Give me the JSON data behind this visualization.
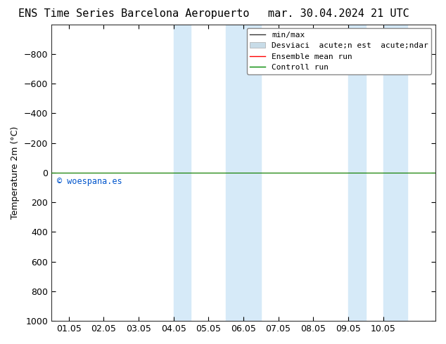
{
  "title_left": "ENS Time Series Barcelona Aeropuerto",
  "title_right": "mar. 30.04.2024 21 UTC",
  "ylabel": "Temperature 2m (°C)",
  "ylim_bottom": 1000,
  "ylim_top": -1000,
  "yticks": [
    -800,
    -600,
    -400,
    -200,
    0,
    200,
    400,
    600,
    800,
    1000
  ],
  "xlim_left": -0.5,
  "xlim_right": 10.5,
  "xtick_labels": [
    "01.05",
    "02.05",
    "03.05",
    "04.05",
    "05.05",
    "06.05",
    "07.05",
    "08.05",
    "09.05",
    "10.05"
  ],
  "xtick_positions": [
    0,
    1,
    2,
    3,
    4,
    5,
    6,
    7,
    8,
    9
  ],
  "shade_regions": [
    [
      3.0,
      3.5
    ],
    [
      4.5,
      5.5
    ],
    [
      8.0,
      8.5
    ],
    [
      9.0,
      9.7
    ]
  ],
  "shade_color": "#d6eaf8",
  "control_run_color": "#008800",
  "ensemble_mean_color": "#ff0000",
  "watermark": "© woespana.es",
  "watermark_color": "#0055cc",
  "background_color": "#ffffff",
  "title_fontsize": 11,
  "axis_fontsize": 9,
  "legend_fontsize": 8
}
